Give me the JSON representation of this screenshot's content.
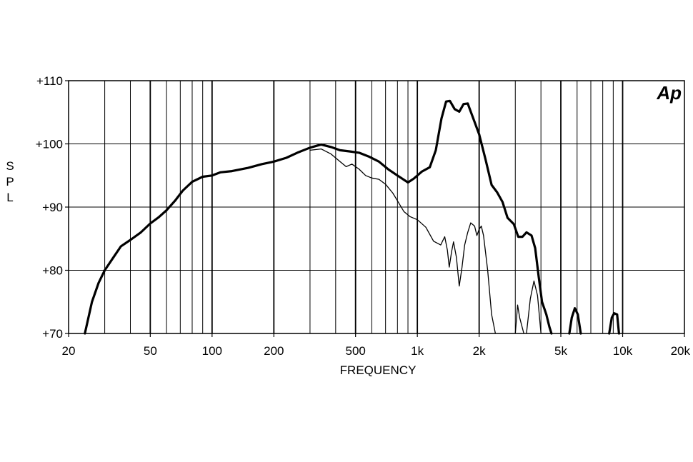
{
  "chart_data": {
    "type": "line",
    "title": "",
    "xlabel": "FREQUENCY",
    "ylabel": "S P L",
    "x_scale": "log",
    "xlim": [
      20,
      20000
    ],
    "ylim": [
      70,
      110
    ],
    "x_ticks": [
      {
        "value": 20,
        "label": "20"
      },
      {
        "value": 50,
        "label": "50"
      },
      {
        "value": 100,
        "label": "100"
      },
      {
        "value": 200,
        "label": "200"
      },
      {
        "value": 500,
        "label": "500"
      },
      {
        "value": 1000,
        "label": "1k"
      },
      {
        "value": 2000,
        "label": "2k"
      },
      {
        "value": 5000,
        "label": "5k"
      },
      {
        "value": 10000,
        "label": "10k"
      },
      {
        "value": 20000,
        "label": "20k"
      }
    ],
    "y_ticks": [
      {
        "value": 70,
        "label": "+70"
      },
      {
        "value": 80,
        "label": "+80"
      },
      {
        "value": 90,
        "label": "+90"
      },
      {
        "value": 100,
        "label": "+100"
      },
      {
        "value": 110,
        "label": "+110"
      }
    ],
    "grid": true,
    "logo_text": "Ap",
    "series": [
      {
        "style": "thick",
        "segments": [
          [
            [
              24,
              70
            ],
            [
              26,
              75
            ],
            [
              28,
              78
            ],
            [
              30,
              80
            ],
            [
              33,
              82
            ],
            [
              36,
              83.8
            ],
            [
              40,
              84.8
            ],
            [
              45,
              86
            ],
            [
              50,
              87.4
            ],
            [
              55,
              88.4
            ],
            [
              60,
              89.5
            ],
            [
              66,
              91
            ],
            [
              72,
              92.6
            ],
            [
              80,
              94
            ],
            [
              90,
              94.8
            ],
            [
              100,
              95
            ],
            [
              110,
              95.5
            ],
            [
              125,
              95.7
            ],
            [
              150,
              96.2
            ],
            [
              175,
              96.8
            ],
            [
              200,
              97.2
            ],
            [
              230,
              97.8
            ],
            [
              260,
              98.6
            ],
            [
              300,
              99.4
            ],
            [
              340,
              99.9
            ],
            [
              380,
              99.5
            ],
            [
              420,
              99
            ],
            [
              470,
              98.8
            ],
            [
              520,
              98.6
            ],
            [
              580,
              98
            ],
            [
              650,
              97.2
            ],
            [
              720,
              96
            ],
            [
              800,
              95
            ],
            [
              900,
              93.9
            ],
            [
              960,
              94.5
            ],
            [
              1050,
              95.6
            ],
            [
              1150,
              96.3
            ],
            [
              1230,
              99
            ],
            [
              1310,
              104
            ],
            [
              1380,
              106.7
            ],
            [
              1440,
              106.8
            ],
            [
              1520,
              105.5
            ],
            [
              1600,
              105.1
            ],
            [
              1680,
              106.3
            ],
            [
              1760,
              106.4
            ],
            [
              1850,
              104.5
            ],
            [
              2000,
              101.5
            ],
            [
              2150,
              97.5
            ],
            [
              2300,
              93.5
            ],
            [
              2450,
              92.3
            ],
            [
              2600,
              90.8
            ],
            [
              2750,
              88.3
            ],
            [
              2950,
              87.3
            ],
            [
              3100,
              85.3
            ],
            [
              3250,
              85.3
            ],
            [
              3400,
              86
            ],
            [
              3600,
              85.5
            ],
            [
              3750,
              83.5
            ],
            [
              3900,
              79
            ],
            [
              4050,
              75
            ],
            [
              4250,
              73
            ],
            [
              4400,
              71
            ],
            [
              4500,
              70
            ]
          ],
          [
            [
              5500,
              70
            ],
            [
              5650,
              72.5
            ],
            [
              5850,
              74
            ],
            [
              6050,
              73
            ],
            [
              6250,
              70
            ]
          ],
          [
            [
              8600,
              70
            ],
            [
              8850,
              72.5
            ],
            [
              9100,
              73.2
            ],
            [
              9400,
              73
            ],
            [
              9600,
              70
            ]
          ]
        ]
      },
      {
        "style": "thin",
        "segments": [
          [
            [
              300,
              99
            ],
            [
              340,
              99.2
            ],
            [
              380,
              98.4
            ],
            [
              420,
              97.2
            ],
            [
              450,
              96.4
            ],
            [
              480,
              96.8
            ],
            [
              520,
              96
            ],
            [
              560,
              95
            ],
            [
              600,
              94.6
            ],
            [
              650,
              94.4
            ],
            [
              700,
              93.6
            ],
            [
              760,
              92.2
            ],
            [
              810,
              90.7
            ],
            [
              860,
              89.3
            ],
            [
              920,
              88.5
            ],
            [
              1000,
              88
            ],
            [
              1100,
              86.8
            ],
            [
              1200,
              84.6
            ],
            [
              1300,
              84
            ],
            [
              1330,
              84.7
            ],
            [
              1360,
              85.3
            ],
            [
              1400,
              83.2
            ],
            [
              1430,
              80.5
            ],
            [
              1470,
              83
            ],
            [
              1500,
              84.5
            ],
            [
              1550,
              82
            ],
            [
              1600,
              77.5
            ],
            [
              1650,
              80.5
            ],
            [
              1700,
              84
            ],
            [
              1760,
              86
            ],
            [
              1820,
              87.5
            ],
            [
              1900,
              87
            ],
            [
              1950,
              85.5
            ],
            [
              2000,
              86.5
            ],
            [
              2050,
              87
            ],
            [
              2100,
              85.5
            ],
            [
              2200,
              80
            ],
            [
              2300,
              73
            ],
            [
              2400,
              70
            ]
          ],
          [
            [
              3000,
              70
            ],
            [
              3080,
              74.5
            ],
            [
              3150,
              72.5
            ],
            [
              3300,
              70
            ]
          ],
          [
            [
              3400,
              70
            ],
            [
              3550,
              75.5
            ],
            [
              3700,
              78.3
            ],
            [
              3850,
              76
            ],
            [
              4000,
              70
            ]
          ]
        ]
      }
    ]
  }
}
